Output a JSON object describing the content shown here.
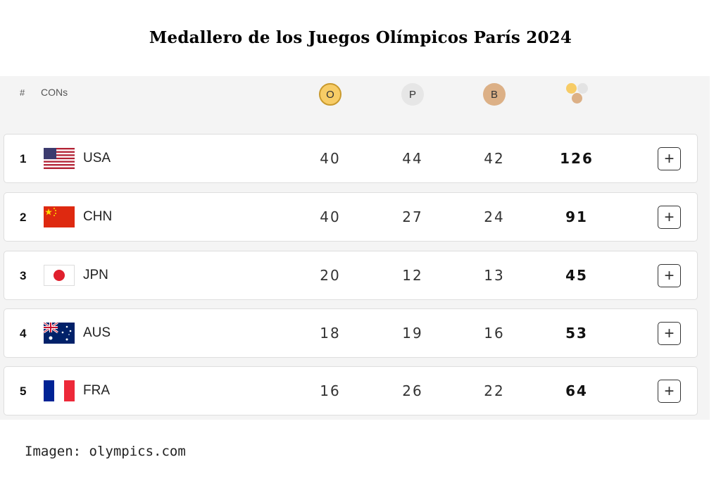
{
  "title": "Medallero de los Juegos Olímpicos París 2024",
  "header": {
    "rank_label": "#",
    "country_label": "CONs",
    "gold_label": "O",
    "silver_label": "P",
    "bronze_label": "B",
    "total_icon": "medals-total-icon"
  },
  "rows": [
    {
      "rank": "1",
      "country": "USA",
      "flag": "usa-flag-icon",
      "gold": "40",
      "silver": "44",
      "bronze": "42",
      "total": "126",
      "expand": "+"
    },
    {
      "rank": "2",
      "country": "CHN",
      "flag": "china-flag-icon",
      "gold": "40",
      "silver": "27",
      "bronze": "24",
      "total": "91",
      "expand": "+"
    },
    {
      "rank": "3",
      "country": "JPN",
      "flag": "japan-flag-icon",
      "gold": "20",
      "silver": "12",
      "bronze": "13",
      "total": "45",
      "expand": "+"
    },
    {
      "rank": "4",
      "country": "AUS",
      "flag": "australia-flag-icon",
      "gold": "18",
      "silver": "19",
      "bronze": "16",
      "total": "53",
      "expand": "+"
    },
    {
      "rank": "5",
      "country": "FRA",
      "flag": "france-flag-icon",
      "gold": "16",
      "silver": "26",
      "bronze": "22",
      "total": "64",
      "expand": "+"
    }
  ],
  "credit": "Imagen: olympics.com",
  "colors": {
    "gold": "#f7cc66",
    "silver": "#e6e6e6",
    "bronze": "#dcb086",
    "panel": "#f4f4f4"
  }
}
